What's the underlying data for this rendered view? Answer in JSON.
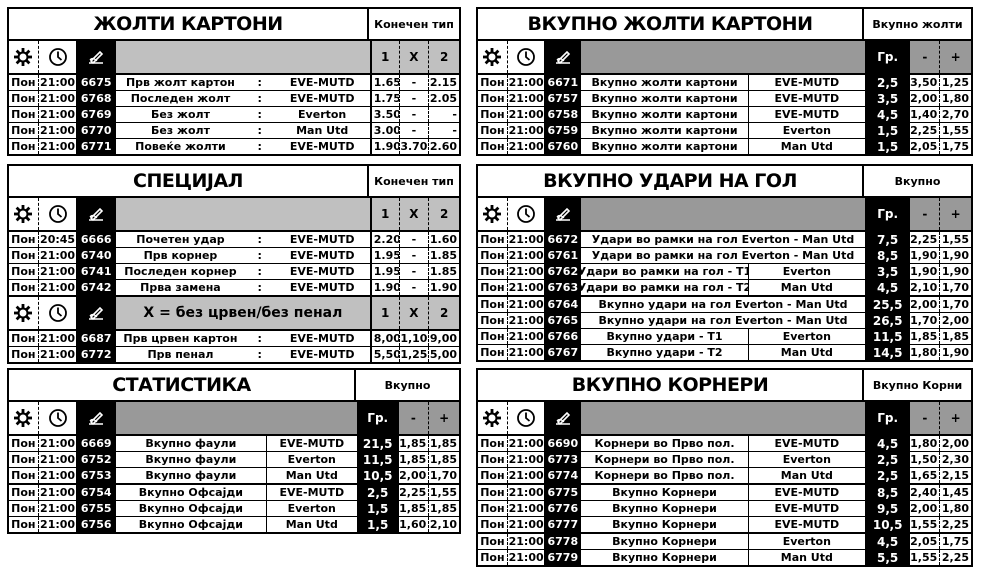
{
  "colors": {
    "header_gray_1x2": "#c0c0c0",
    "header_gray_line": "#999999",
    "code_bg": "#000000"
  },
  "icons": [
    "gear-icon",
    "clock-icon",
    "pen-icon"
  ],
  "panels": [
    {
      "id": "yellow-cards",
      "type": "1x2",
      "title": "ЖОЛТИ КАРТОНИ",
      "right_title": "Конечен тип",
      "headers": [
        {
          "label": "",
          "cols": [
            "1",
            "X",
            "2"
          ]
        }
      ],
      "rows": [
        {
          "day": "Пон",
          "time": "21:00",
          "code": "6675",
          "market": "Прв жолт картон",
          "colon": ":",
          "team": "EVE-MUTD",
          "odds": [
            "1.65",
            "-",
            "2.15"
          ]
        },
        {
          "day": "Пон",
          "time": "21:00",
          "code": "6768",
          "market": "Последен жолт",
          "colon": ":",
          "team": "EVE-MUTD",
          "odds": [
            "1.75",
            "-",
            "2.05"
          ]
        },
        {
          "day": "Пон",
          "time": "21:00",
          "code": "6769",
          "market": "Без жолт",
          "colon": ":",
          "team": "Everton",
          "odds": [
            "3.50",
            "-",
            "-"
          ]
        },
        {
          "day": "Пон",
          "time": "21:00",
          "code": "6770",
          "market": "Без жолт",
          "colon": ":",
          "team": "Man Utd",
          "odds": [
            "3.00",
            "-",
            "-"
          ]
        },
        {
          "day": "Пон",
          "time": "21:00",
          "code": "6771",
          "market": "Повеќе жолти",
          "colon": ":",
          "team": "EVE-MUTD",
          "odds": [
            "1.90",
            "3.70",
            "2.60"
          ]
        }
      ]
    },
    {
      "id": "total-yellow-cards",
      "type": "line",
      "title": "ВКУПНО ЖОЛТИ КАРТОНИ",
      "right_title": "Вкупно жолти",
      "headers": [
        {
          "line": "Гр.",
          "under": "-",
          "over": "+"
        }
      ],
      "rows": [
        {
          "day": "Пон",
          "time": "21:00",
          "code": "6671",
          "market": "Вкупно жолти картони",
          "team": "EVE-MUTD",
          "line": "2,5",
          "under": "3,50",
          "over": "1,25"
        },
        {
          "day": "Пон",
          "time": "21:00",
          "code": "6757",
          "market": "Вкупно жолти картони",
          "team": "EVE-MUTD",
          "line": "3,5",
          "under": "2,00",
          "over": "1,80"
        },
        {
          "day": "Пон",
          "time": "21:00",
          "code": "6758",
          "market": "Вкупно жолти картони",
          "team": "EVE-MUTD",
          "line": "4,5",
          "under": "1,40",
          "over": "2,70"
        },
        {
          "day": "Пон",
          "time": "21:00",
          "code": "6759",
          "market": "Вкупно жолти картони",
          "team": "Everton",
          "line": "1,5",
          "under": "2,25",
          "over": "1,55"
        },
        {
          "day": "Пон",
          "time": "21:00",
          "code": "6760",
          "market": "Вкупно жолти картони",
          "team": "Man Utd",
          "line": "1,5",
          "under": "2,05",
          "over": "1,75"
        }
      ]
    },
    {
      "id": "special",
      "type": "1x2",
      "title": "СПЕЦИЈАЛ",
      "right_title": "Конечен тип",
      "headers": [
        {
          "label": "",
          "cols": [
            "1",
            "X",
            "2"
          ]
        },
        {
          "label": "X = без црвен/без пенал",
          "cols": [
            "1",
            "X",
            "2"
          ]
        }
      ],
      "rows": [
        {
          "day": "Пон",
          "time": "20:45",
          "code": "6666",
          "market": "Почетен удар",
          "colon": ":",
          "team": "EVE-MUTD",
          "odds": [
            "2.20",
            "-",
            "1.60"
          ]
        },
        {
          "day": "Пон",
          "time": "21:00",
          "code": "6740",
          "market": "Прв корнер",
          "colon": ":",
          "team": "EVE-MUTD",
          "odds": [
            "1.95",
            "-",
            "1.85"
          ]
        },
        {
          "day": "Пон",
          "time": "21:00",
          "code": "6741",
          "market": "Последен корнер",
          "colon": ":",
          "team": "EVE-MUTD",
          "odds": [
            "1.95",
            "-",
            "1.85"
          ]
        },
        {
          "day": "Пон",
          "time": "21:00",
          "code": "6742",
          "market": "Прва замена",
          "colon": ":",
          "team": "EVE-MUTD",
          "odds": [
            "1.90",
            "-",
            "1.90"
          ]
        },
        {
          "day": "Пон",
          "time": "21:00",
          "code": "6687",
          "market": "Прв црвен картон",
          "colon": ":",
          "team": "EVE-MUTD",
          "odds": [
            "8,00",
            "1,10",
            "9,00"
          ]
        },
        {
          "day": "Пон",
          "time": "21:00",
          "code": "6772",
          "market": "Прв пенал",
          "colon": ":",
          "team": "EVE-MUTD",
          "odds": [
            "5,50",
            "1,25",
            "5,00"
          ]
        }
      ]
    },
    {
      "id": "total-shots-on-goal",
      "type": "line",
      "title": "ВКУПНО УДАРИ НА ГОЛ",
      "right_title": "Вкупно",
      "headers": [
        {
          "line": "Гр.",
          "under": "-",
          "over": "+"
        }
      ],
      "rows": [
        {
          "day": "Пон",
          "time": "21:00",
          "code": "6672",
          "market": "Удари во рамки на гол Everton - Man Utd",
          "team": "",
          "line": "7,5",
          "under": "2,25",
          "over": "1,55"
        },
        {
          "day": "Пон",
          "time": "21:00",
          "code": "6761",
          "market": "Удари во рамки на гол Everton  - Man Utd",
          "team": "",
          "line": "8,5",
          "under": "1,90",
          "over": "1,90"
        },
        {
          "day": "Пон",
          "time": "21:00",
          "code": "6762",
          "market": "Удари во рамки на гол - Т1",
          "team": "Everton",
          "line": "3,5",
          "under": "1,90",
          "over": "1,90"
        },
        {
          "day": "Пон",
          "time": "21:00",
          "code": "6763",
          "market": "Удари во рамки на гол - Т2",
          "team": "Man Utd",
          "line": "4,5",
          "under": "2,10",
          "over": "1,70"
        },
        {
          "day": "Пон",
          "time": "21:00",
          "code": "6764",
          "market": "Вкупно удари на гол Everton - Man Utd",
          "team": "",
          "line": "25,5",
          "under": "2,00",
          "over": "1,70"
        },
        {
          "day": "Пон",
          "time": "21:00",
          "code": "6765",
          "market": "Вкупно удари на гол Everton - Man Utd",
          "team": "",
          "line": "26,5",
          "under": "1,70",
          "over": "2,00"
        },
        {
          "day": "Пон",
          "time": "21:00",
          "code": "6766",
          "market": "Вкупно удари - Т1",
          "team": "Everton",
          "line": "11,5",
          "under": "1,85",
          "over": "1,85"
        },
        {
          "day": "Пон",
          "time": "21:00",
          "code": "6767",
          "market": "Вкупно удари - Т2",
          "team": "Man Utd",
          "line": "14,5",
          "under": "1,80",
          "over": "1,90"
        }
      ]
    },
    {
      "id": "statistics",
      "type": "line",
      "title": "СТАТИСТИКА",
      "right_title": "Вкупно",
      "headers": [
        {
          "line": "Гр.",
          "under": "-",
          "over": "+"
        }
      ],
      "rows": [
        {
          "day": "Пон",
          "time": "21:00",
          "code": "6669",
          "market": "Вкупно фаули",
          "team": "EVE-MUTD",
          "line": "21,5",
          "under": "1,85",
          "over": "1,85"
        },
        {
          "day": "Пон",
          "time": "21:00",
          "code": "6752",
          "market": "Вкупно фаули",
          "team": "Everton",
          "line": "11,5",
          "under": "1,85",
          "over": "1,85"
        },
        {
          "day": "Пон",
          "time": "21:00",
          "code": "6753",
          "market": "Вкупно фаули",
          "team": "Man Utd",
          "line": "10,5",
          "under": "2,00",
          "over": "1,70"
        },
        {
          "day": "Пон",
          "time": "21:00",
          "code": "6754",
          "market": "Вкупно Офсајди",
          "team": "EVE-MUTD",
          "line": "2,5",
          "under": "2,25",
          "over": "1,55"
        },
        {
          "day": "Пон",
          "time": "21:00",
          "code": "6755",
          "market": "Вкупно Офсајди",
          "team": "Everton",
          "line": "1,5",
          "under": "1,85",
          "over": "1,85"
        },
        {
          "day": "Пон",
          "time": "21:00",
          "code": "6756",
          "market": "Вкупно Офсајди",
          "team": "Man Utd",
          "line": "1,5",
          "under": "1,60",
          "over": "2,10"
        }
      ]
    },
    {
      "id": "total-corners",
      "type": "line",
      "title": "ВКУПНО КОРНЕРИ",
      "right_title": "Вкупно Корни",
      "headers": [
        {
          "line": "Гр.",
          "under": "-",
          "over": "+"
        }
      ],
      "rows": [
        {
          "day": "Пон",
          "time": "21:00",
          "code": "6690",
          "market": "Корнери во Прво пол.",
          "team": "EVE-MUTD",
          "line": "4,5",
          "under": "1,80",
          "over": "2,00"
        },
        {
          "day": "Пон",
          "time": "21:00",
          "code": "6773",
          "market": "Корнери во Прво пол.",
          "team": "Everton",
          "line": "2,5",
          "under": "1,50",
          "over": "2,30"
        },
        {
          "day": "Пон",
          "time": "21:00",
          "code": "6774",
          "market": "Корнери во Прво пол.",
          "team": "Man Utd",
          "line": "2,5",
          "under": "1,65",
          "over": "2,15"
        },
        {
          "day": "Пон",
          "time": "21:00",
          "code": "6775",
          "market": "Вкупно Корнери",
          "team": "EVE-MUTD",
          "line": "8,5",
          "under": "2,40",
          "over": "1,45"
        },
        {
          "day": "Пон",
          "time": "21:00",
          "code": "6776",
          "market": "Вкупно Корнери",
          "team": "EVE-MUTD",
          "line": "9,5",
          "under": "2,00",
          "over": "1,80"
        },
        {
          "day": "Пон",
          "time": "21:00",
          "code": "6777",
          "market": "Вкупно Корнери",
          "team": "EVE-MUTD",
          "line": "10,5",
          "under": "1,55",
          "over": "2,25"
        },
        {
          "day": "Пон",
          "time": "21:00",
          "code": "6778",
          "market": "Вкупно Корнери",
          "team": "Everton",
          "line": "4,5",
          "under": "2,05",
          "over": "1,75"
        },
        {
          "day": "Пон",
          "time": "21:00",
          "code": "6779",
          "market": "Вкупно Корнери",
          "team": "Man Utd",
          "line": "5,5",
          "under": "1,55",
          "over": "2,25"
        }
      ]
    }
  ]
}
